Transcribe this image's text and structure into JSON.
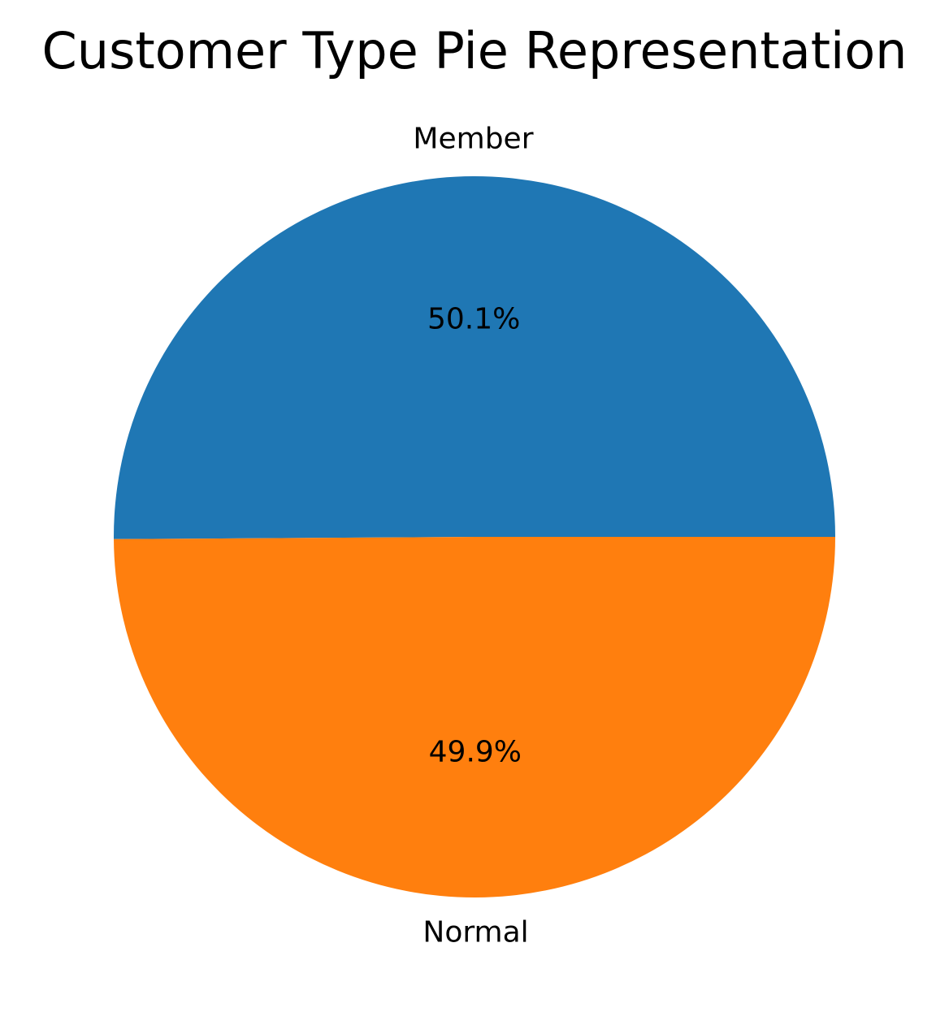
{
  "chart_data": {
    "type": "pie",
    "title": "Customer Type Pie Representation",
    "categories": [
      "Member",
      "Normal"
    ],
    "values": [
      50.1,
      49.9
    ],
    "percent_labels": [
      "50.1%",
      "49.9%"
    ],
    "colors": [
      "#1f77b4",
      "#ff7f0e"
    ],
    "start_angle_deg": 0,
    "direction": "counterclockwise",
    "legend": "none"
  }
}
